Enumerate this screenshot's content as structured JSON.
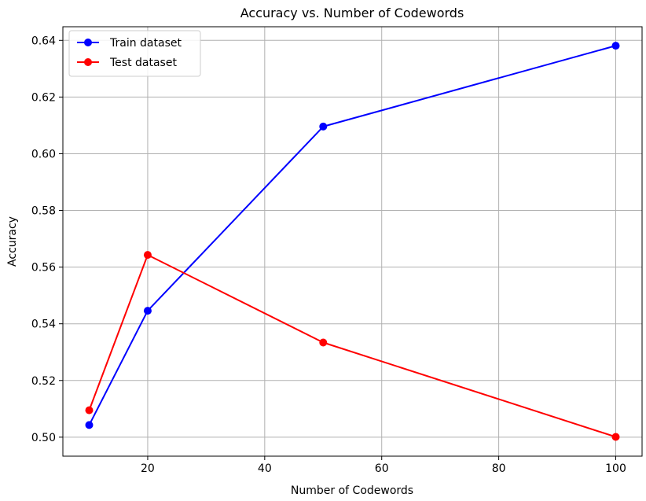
{
  "chart_data": {
    "type": "line",
    "title": "Accuracy vs. Number of Codewords",
    "xlabel": "Number of Codewords",
    "ylabel": "Accuracy",
    "x": [
      10,
      20,
      50,
      100
    ],
    "series": [
      {
        "name": "Train dataset",
        "color": "#0000ff",
        "values": [
          0.5043,
          0.5446,
          0.6096,
          0.6381
        ]
      },
      {
        "name": "Test dataset",
        "color": "#ff0000",
        "values": [
          0.5095,
          0.5643,
          0.5334,
          0.5001
        ]
      }
    ],
    "xlim": [
      5.5,
      104.5
    ],
    "ylim": [
      0.4933,
      0.6448
    ],
    "xticks": [
      20,
      40,
      60,
      80,
      100
    ],
    "yticks": [
      0.5,
      0.52,
      0.54,
      0.56,
      0.58,
      0.6,
      0.62,
      0.64
    ],
    "xtick_labels": [
      "20",
      "40",
      "60",
      "80",
      "100"
    ],
    "ytick_labels": [
      "0.50",
      "0.52",
      "0.54",
      "0.56",
      "0.58",
      "0.60",
      "0.62",
      "0.64"
    ],
    "grid": true,
    "legend_position": "top-left",
    "marker": "circle"
  }
}
